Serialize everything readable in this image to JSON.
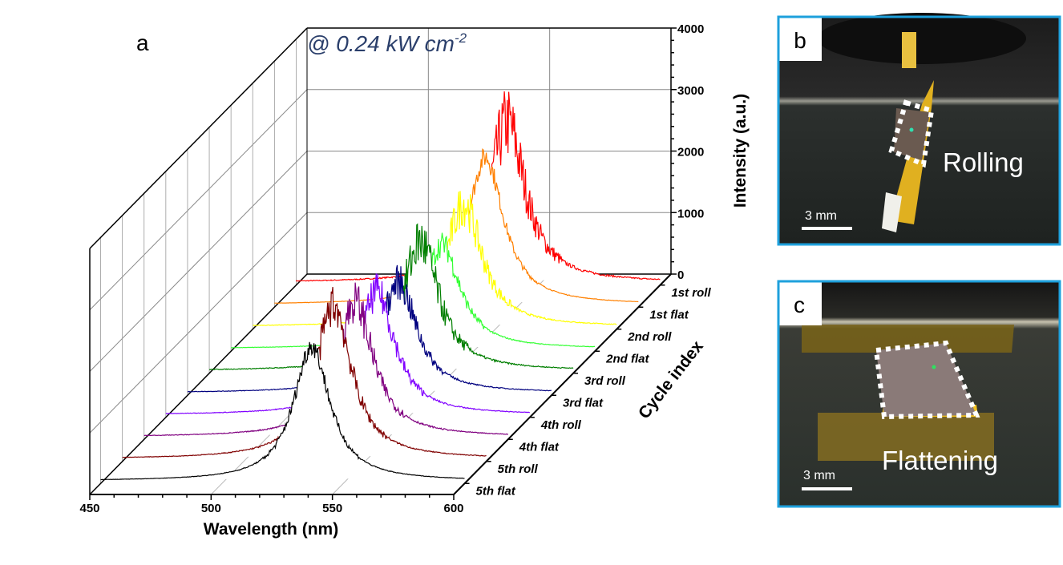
{
  "panel_labels": {
    "a": "a",
    "b": "b",
    "c": "c"
  },
  "annotation": {
    "text": "@ 0.24 kW cm",
    "superscript": "-2",
    "color": "#2b3f6b"
  },
  "chart_data": {
    "type": "line",
    "subtype": "3d-waterfall",
    "xlabel": "Wavelength (nm)",
    "ylabel": "Intensity (a.u.)",
    "zlabel": "Cycle index",
    "xlim": [
      450,
      600
    ],
    "ylim": [
      0,
      4000
    ],
    "xticks": [
      "450",
      "500",
      "550",
      "600"
    ],
    "yticks": [
      "0",
      "1000",
      "2000",
      "3000",
      "4000"
    ],
    "grid": true,
    "peak_wavelength": 537,
    "series": [
      {
        "name": "1st roll",
        "color": "#ff0000",
        "peak": 2600,
        "max_spike": 3900
      },
      {
        "name": "1st flat",
        "color": "#ff8000",
        "peak": 2400,
        "max_spike": 2500
      },
      {
        "name": "2nd roll",
        "color": "#ffff00",
        "peak": 2000,
        "max_spike": 2700
      },
      {
        "name": "2nd flat",
        "color": "#33ff33",
        "peak": 1700,
        "max_spike": 2000
      },
      {
        "name": "3rd roll",
        "color": "#007f00",
        "peak": 2100,
        "max_spike": 3000
      },
      {
        "name": "3rd flat",
        "color": "#00007f",
        "peak": 1800,
        "max_spike": 2300
      },
      {
        "name": "4th roll",
        "color": "#8000ff",
        "peak": 2000,
        "max_spike": 2500
      },
      {
        "name": "4th flat",
        "color": "#800080",
        "peak": 2200,
        "max_spike": 2800
      },
      {
        "name": "5th roll",
        "color": "#800000",
        "peak": 2500,
        "max_spike": 3000
      },
      {
        "name": "5th flat",
        "color": "#000000",
        "peak": 2200,
        "max_spike": 2300
      }
    ]
  },
  "photos": {
    "b": {
      "caption": "Rolling",
      "scale_bar": "3 mm"
    },
    "c": {
      "caption": "Flattening",
      "scale_bar": "3 mm"
    },
    "frame_color": "#1ea0dc"
  }
}
